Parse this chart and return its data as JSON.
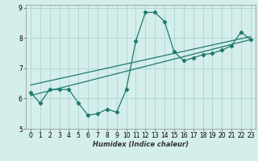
{
  "xlabel": "Humidex (Indice chaleur)",
  "xlim": [
    -0.5,
    23.5
  ],
  "ylim": [
    5,
    9.1
  ],
  "yticks": [
    5,
    6,
    7,
    8,
    9
  ],
  "xticks": [
    0,
    1,
    2,
    3,
    4,
    5,
    6,
    7,
    8,
    9,
    10,
    11,
    12,
    13,
    14,
    15,
    16,
    17,
    18,
    19,
    20,
    21,
    22,
    23
  ],
  "bg_color": "#d4eeec",
  "grid_color": "#aed4d0",
  "line_color": "#1f7a6d",
  "curve1_x": [
    0,
    1,
    2,
    3,
    4,
    5,
    6,
    7,
    8,
    9,
    10,
    11,
    12,
    13,
    14,
    15,
    16,
    17,
    18,
    19,
    20,
    21,
    22,
    23
  ],
  "curve1_y": [
    6.2,
    5.85,
    6.3,
    6.3,
    6.3,
    5.85,
    5.45,
    5.5,
    5.65,
    5.55,
    6.3,
    7.9,
    8.85,
    8.85,
    8.55,
    7.55,
    7.25,
    7.35,
    7.45,
    7.5,
    7.6,
    7.75,
    8.2,
    7.95
  ],
  "trend1_x": [
    0,
    23
  ],
  "trend1_y": [
    6.1,
    7.95
  ],
  "trend2_x": [
    0,
    23
  ],
  "trend2_y": [
    6.45,
    8.05
  ]
}
